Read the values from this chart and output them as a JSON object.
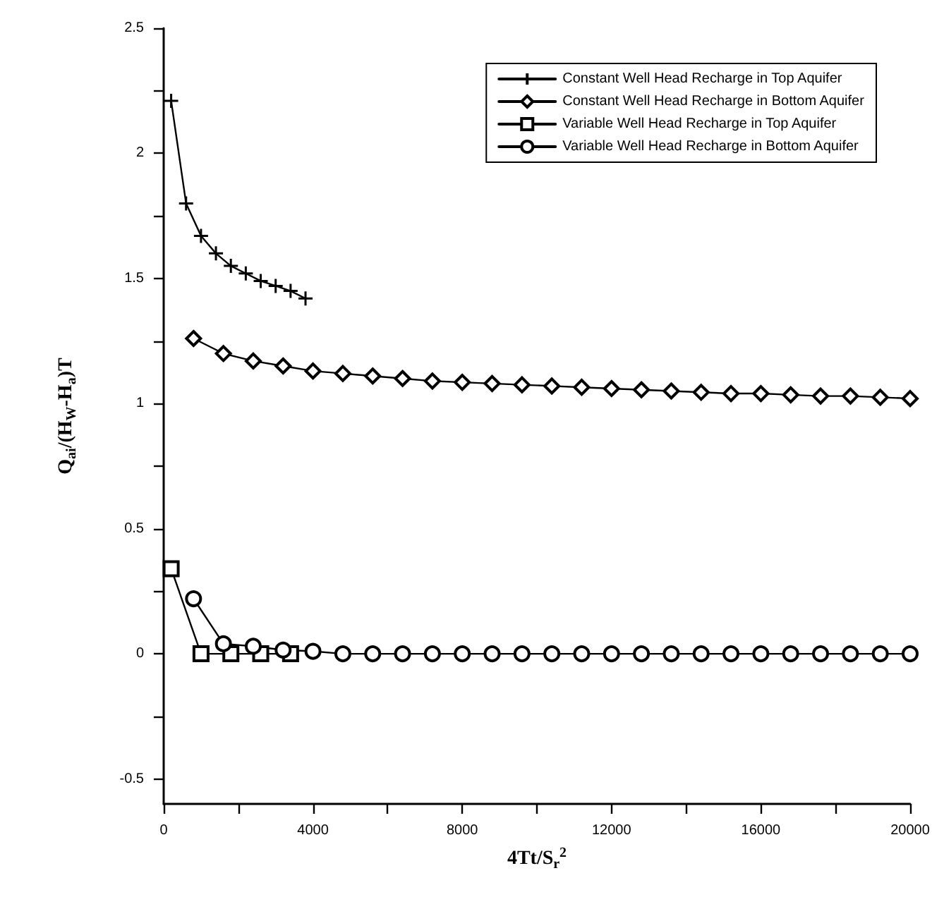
{
  "chart_data": {
    "type": "line",
    "xlabel": "4Tt/S$_{r}$$^{2}$",
    "ylabel": "Q$_{ai}$/(H$_{W}$-H$_{a}$)T",
    "xlim": [
      0,
      20000
    ],
    "ylim": [
      -0.6,
      2.5
    ],
    "xticks": [
      0,
      {
        "value": 2000,
        "label": null
      },
      4000,
      {
        "value": 6000,
        "label": null
      },
      8000,
      {
        "value": 10000,
        "label": null
      },
      12000,
      {
        "value": 14000,
        "label": null
      },
      16000,
      {
        "value": 18000,
        "label": null
      },
      20000
    ],
    "yticks": [
      -0.5,
      {
        "value": -0.25,
        "label": null
      },
      0,
      {
        "value": 0.25,
        "label": null
      },
      0.5,
      {
        "value": 0.75,
        "label": null
      },
      1,
      {
        "value": 1.25,
        "label": null
      },
      1.5,
      {
        "value": 1.75,
        "label": null
      },
      2,
      {
        "value": 2.25,
        "label": null
      },
      2.5
    ],
    "grid": false,
    "legend": "top right",
    "line_style": "solid",
    "series": [
      {
        "name": "Constant Well Head Recharge in Top Aquifer",
        "color": "#000000",
        "marker": "cross",
        "x": [
          200,
          600,
          1000,
          1400,
          1800,
          2200,
          2600,
          3000,
          3400,
          3800
        ],
        "values": [
          2.21,
          1.8,
          1.67,
          1.6,
          1.55,
          1.52,
          1.49,
          1.47,
          1.45,
          1.42
        ]
      },
      {
        "name": "Constant Well Head Recharge in Bottom Aquifer",
        "color": "#000000",
        "marker": "diamond",
        "x": [
          800,
          1600,
          2400,
          3200,
          4000,
          4800,
          5600,
          6400,
          7200,
          8000,
          8800,
          9600,
          10400,
          11200,
          12000,
          12800,
          13600,
          14400,
          15200,
          16000,
          16800,
          17600,
          18400,
          19200,
          20000
        ],
        "values": [
          1.26,
          1.2,
          1.17,
          1.15,
          1.13,
          1.12,
          1.11,
          1.1,
          1.09,
          1.085,
          1.08,
          1.075,
          1.07,
          1.065,
          1.06,
          1.055,
          1.05,
          1.045,
          1.04,
          1.04,
          1.035,
          1.03,
          1.03,
          1.025,
          1.02
        ]
      },
      {
        "name": "Variable Well Head Recharge in Top Aquifer",
        "color": "#000000",
        "marker": "square",
        "x": [
          200,
          1000,
          1800,
          2600,
          3400
        ],
        "values": [
          0.34,
          0,
          0,
          0,
          0
        ]
      },
      {
        "name": "Variable Well Head Recharge in Bottom Aquifer",
        "color": "#000000",
        "marker": "circle",
        "x": [
          800,
          1600,
          2400,
          3200,
          4000,
          4800,
          5600,
          6400,
          7200,
          8000,
          8800,
          9600,
          10400,
          11200,
          12000,
          12800,
          13600,
          14400,
          15200,
          16000,
          16800,
          17600,
          18400,
          19200,
          20000
        ],
        "values": [
          0.22,
          0.04,
          0.03,
          0.015,
          0.01,
          0,
          0,
          0,
          0,
          0,
          0,
          0,
          0,
          0,
          0,
          0,
          0,
          0,
          0,
          0,
          0,
          0,
          0,
          0,
          0
        ]
      }
    ]
  }
}
